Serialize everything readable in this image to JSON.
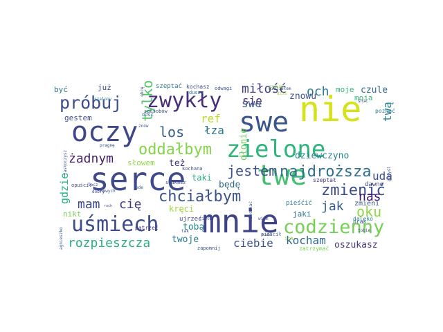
{
  "words": [
    {
      "text": "nie",
      "color": "#d5e21a"
    },
    {
      "text": "mnie",
      "color": "#404387"
    },
    {
      "text": "serce",
      "color": "#3e4a89"
    },
    {
      "text": "swe",
      "color": "#3a548c"
    },
    {
      "text": "oczy",
      "color": "#3f4788"
    },
    {
      "text": "twe",
      "color": "#44bf70"
    },
    {
      "text": "zielone",
      "color": "#2fb47c"
    },
    {
      "text": "zwykły",
      "color": "#472d7b"
    },
    {
      "text": "uśmiech",
      "color": "#3f4c8a"
    },
    {
      "text": "codzienny",
      "color": "#75d054"
    },
    {
      "text": "próbuj",
      "color": "#3d4e8a"
    },
    {
      "text": "chciałbym",
      "color": "#3b528b"
    },
    {
      "text": "oddałbym",
      "color": "#84d44b"
    },
    {
      "text": "najdroższa",
      "color": "#2e6f8e"
    },
    {
      "text": "zmienić",
      "color": "#3e4c8a"
    },
    {
      "text": "rozpieszcza",
      "color": "#2ab07f"
    },
    {
      "text": "los",
      "color": "#365c8d"
    },
    {
      "text": "jestem",
      "color": "#3b528b"
    },
    {
      "text": "miłość",
      "color": "#424086"
    },
    {
      "text": "och",
      "color": "#2a788e"
    },
    {
      "text": "tylko",
      "color": "#52c569"
    },
    {
      "text": "żadnym",
      "color": "#481f70"
    },
    {
      "text": "mam",
      "color": "#3f4788"
    },
    {
      "text": "cię",
      "color": "#443983"
    },
    {
      "text": "oku",
      "color": "#8fd744"
    },
    {
      "text": "nas",
      "color": "#3b0f70"
    },
    {
      "text": "jak",
      "color": "#365d8d"
    },
    {
      "text": "ciebie",
      "color": "#3b528b"
    },
    {
      "text": "kocham",
      "color": "#31688e"
    },
    {
      "text": "oszukasz",
      "color": "#453781"
    },
    {
      "text": "twoje",
      "color": "#287c8e"
    },
    {
      "text": "tobą",
      "color": "#26828e"
    },
    {
      "text": "się",
      "color": "#472878"
    },
    {
      "text": "łza",
      "color": "#2a788e"
    },
    {
      "text": "ref",
      "color": "#b8de29"
    },
    {
      "text": "tę",
      "color": "#2f6c8e"
    },
    {
      "text": "uda",
      "color": "#3d4e8a"
    },
    {
      "text": "twą",
      "color": "#26828e"
    },
    {
      "text": "gdzie",
      "color": "#2ab07f"
    },
    {
      "text": "dłonie",
      "color": "#6ece58"
    },
    {
      "text": "kręci",
      "color": "#9cd93b"
    },
    {
      "text": "też",
      "color": "#46327e"
    },
    {
      "text": "będę",
      "color": "#31688e"
    },
    {
      "text": "taki",
      "color": "#2ab07f"
    },
    {
      "text": "dziewczyno",
      "color": "#25838e"
    },
    {
      "text": "znowu",
      "color": "#3b528b"
    },
    {
      "text": "moje",
      "color": "#35b779"
    },
    {
      "text": "czule",
      "color": "#31688e"
    },
    {
      "text": "moja",
      "color": "#35b779"
    },
    {
      "text": "być",
      "color": "#2c728e"
    },
    {
      "text": "już",
      "color": "#3e4989"
    },
    {
      "text": "gestem",
      "color": "#3e4989"
    },
    {
      "text": "słowem",
      "color": "#8fd744"
    },
    {
      "text": "szeptać",
      "color": "#2c728e"
    },
    {
      "text": "nikt",
      "color": "#7ad151"
    },
    {
      "text": "jaki",
      "color": "#2c728e"
    },
    {
      "text": "zmieni",
      "color": "#3b528b"
    },
    {
      "text": "pieśćić",
      "color": "#2a788e"
    },
    {
      "text": "dawno",
      "color": "#3e4989"
    },
    {
      "text": "szeptał",
      "color": "#46337f"
    },
    {
      "text": "brak",
      "color": "#3b528b"
    },
    {
      "text": "daleko",
      "color": "#26828e"
    },
    {
      "text": "zatrzymać",
      "color": "#7ad151"
    },
    {
      "text": "poznać",
      "color": "#2a788e"
    },
    {
      "text": "kochasz",
      "color": "#3e4989"
    },
    {
      "text": "odwagi",
      "color": "#3b528b"
    },
    {
      "text": "dusza",
      "color": "#2c728e"
    },
    {
      "text": "kochana",
      "color": "#3b528b"
    },
    {
      "text": "sposobów",
      "color": "#3b528b"
    },
    {
      "text": "szalony",
      "color": "#26828e"
    },
    {
      "text": "pragnę",
      "color": "#3b528b"
    },
    {
      "text": "opuścił",
      "color": "#3e4989"
    },
    {
      "text": "lecz",
      "color": "#3b528b"
    },
    {
      "text": "dobry",
      "color": "#3e4989"
    },
    {
      "text": "nowych",
      "color": "#3b528b"
    },
    {
      "text": "ode",
      "color": "#3b528b"
    },
    {
      "text": "szukasz",
      "color": "#3e4989"
    },
    {
      "text": "patrzeć",
      "color": "#46337f"
    },
    {
      "text": "ujrzeć",
      "color": "#3e4989"
    },
    {
      "text": "zapomnij",
      "color": "#3b528b"
    },
    {
      "text": "ciało",
      "color": "#3b528b"
    },
    {
      "text": "tak",
      "color": "#3e4989"
    },
    {
      "text": "widziałem",
      "color": "#3b528b"
    },
    {
      "text": "dość",
      "color": "#2c728e"
    },
    {
      "text": "znów",
      "color": "#3b528b"
    },
    {
      "text": "śnić",
      "color": "#3e4989"
    },
    {
      "text": "pieścił",
      "color": "#3b528b"
    },
    {
      "text": "tobie",
      "color": "#3e4989"
    },
    {
      "text": "wiem",
      "color": "#3e4989"
    },
    {
      "text": "ich",
      "color": "#a0da39"
    },
    {
      "text": "zaskoczysz",
      "color": "#3b528b"
    },
    {
      "text": "agnieszko",
      "color": "#3b528b"
    },
    {
      "text": "mieszkać",
      "color": "#3b528b"
    },
    {
      "text": "pomyśl",
      "color": "#3e4989"
    },
    {
      "text": "chcę",
      "color": "#3e4989"
    },
    {
      "text": "ruch",
      "color": "#3e4989"
    },
    {
      "text": "dziś",
      "color": "#a0da39"
    },
    {
      "text": "szukam",
      "color": "#a0da39"
    },
    {
      "text": "ruchu",
      "color": "#3b528b"
    }
  ]
}
